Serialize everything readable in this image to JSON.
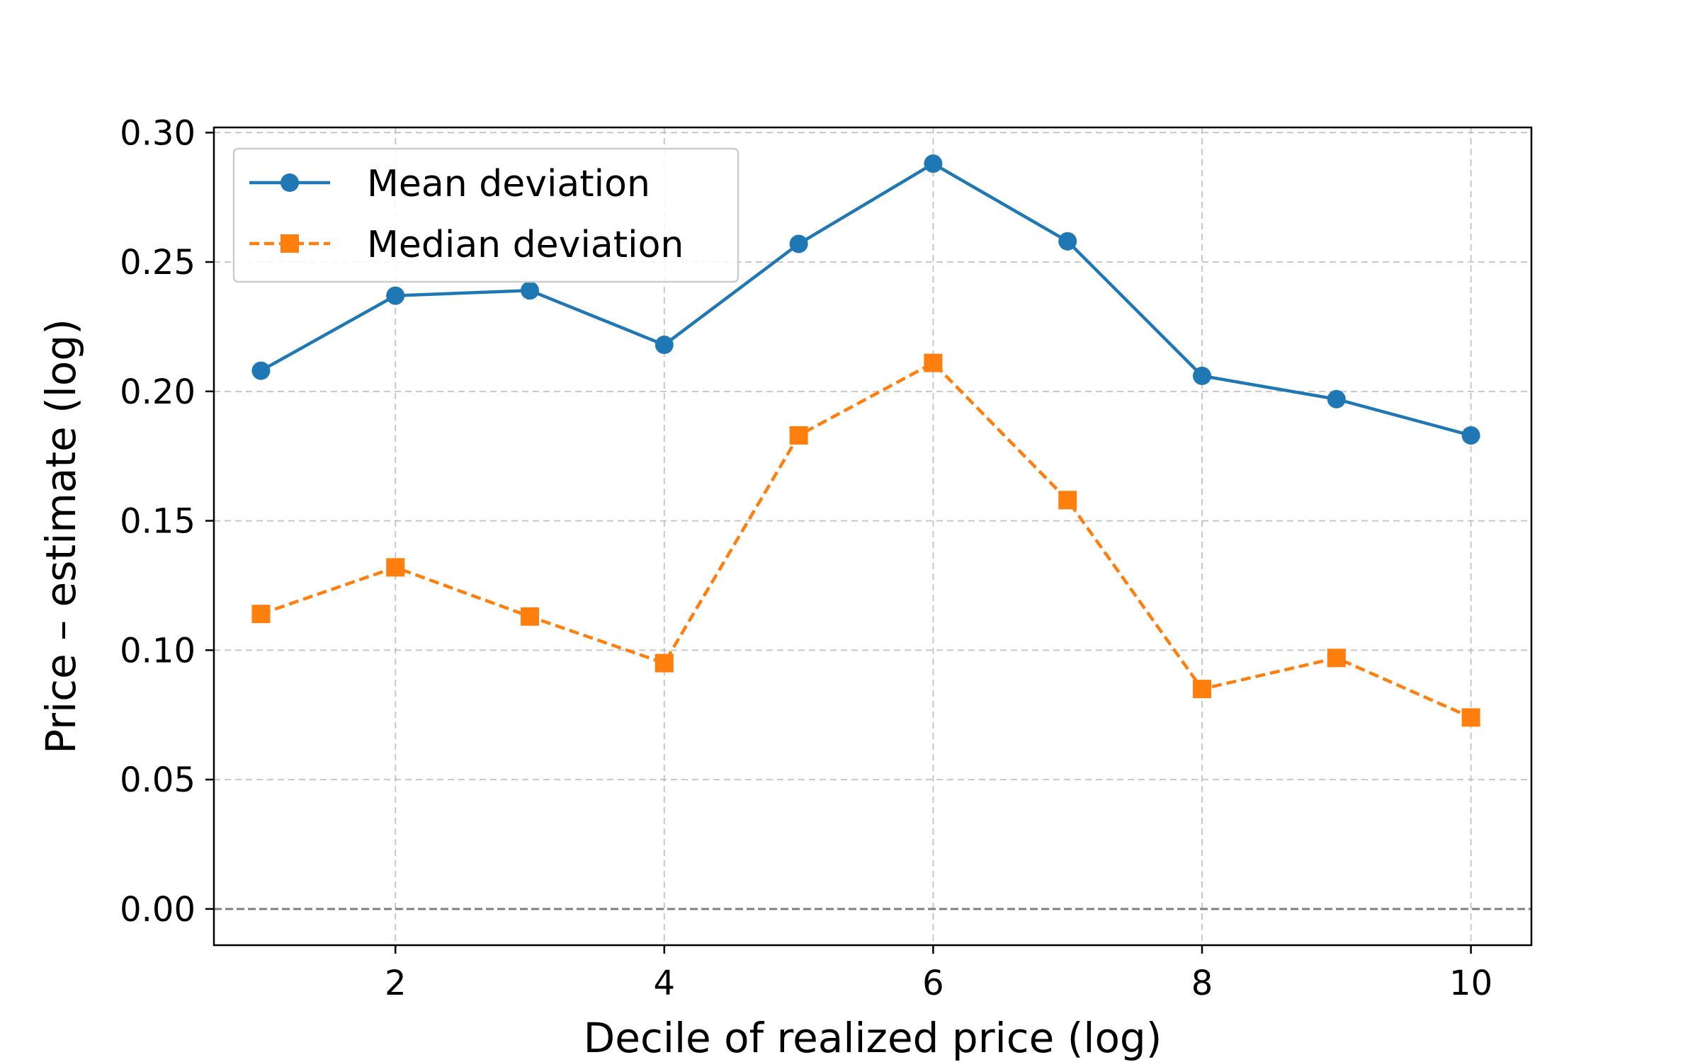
{
  "chart_data": {
    "type": "line",
    "title": "",
    "xlabel": "Decile of realized price (log)",
    "ylabel": "Price – estimate (log)",
    "xlim": [
      0.65,
      10.45
    ],
    "ylim": [
      -0.014,
      0.302
    ],
    "xticks": [
      2,
      4,
      6,
      8,
      10
    ],
    "xtick_labels": [
      "2",
      "4",
      "6",
      "8",
      "10"
    ],
    "yticks": [
      0.0,
      0.05,
      0.1,
      0.15,
      0.2,
      0.25,
      0.3
    ],
    "ytick_labels": [
      "0.00",
      "0.05",
      "0.10",
      "0.15",
      "0.20",
      "0.25",
      "0.30"
    ],
    "grid": true,
    "reference_line_y": 0.0,
    "legend_position": "top-left",
    "x": [
      1,
      2,
      3,
      4,
      5,
      6,
      7,
      8,
      9,
      10
    ],
    "series": [
      {
        "name": "Mean deviation",
        "values": [
          0.208,
          0.237,
          0.239,
          0.218,
          0.257,
          0.288,
          0.258,
          0.206,
          0.197,
          0.183
        ],
        "color": "#1f77b4",
        "marker": "circle",
        "linestyle": "solid"
      },
      {
        "name": "Median deviation",
        "values": [
          0.114,
          0.132,
          0.113,
          0.095,
          0.183,
          0.211,
          0.158,
          0.085,
          0.097,
          0.074
        ],
        "color": "#ff7f0e",
        "marker": "square",
        "linestyle": "dashed"
      }
    ]
  }
}
